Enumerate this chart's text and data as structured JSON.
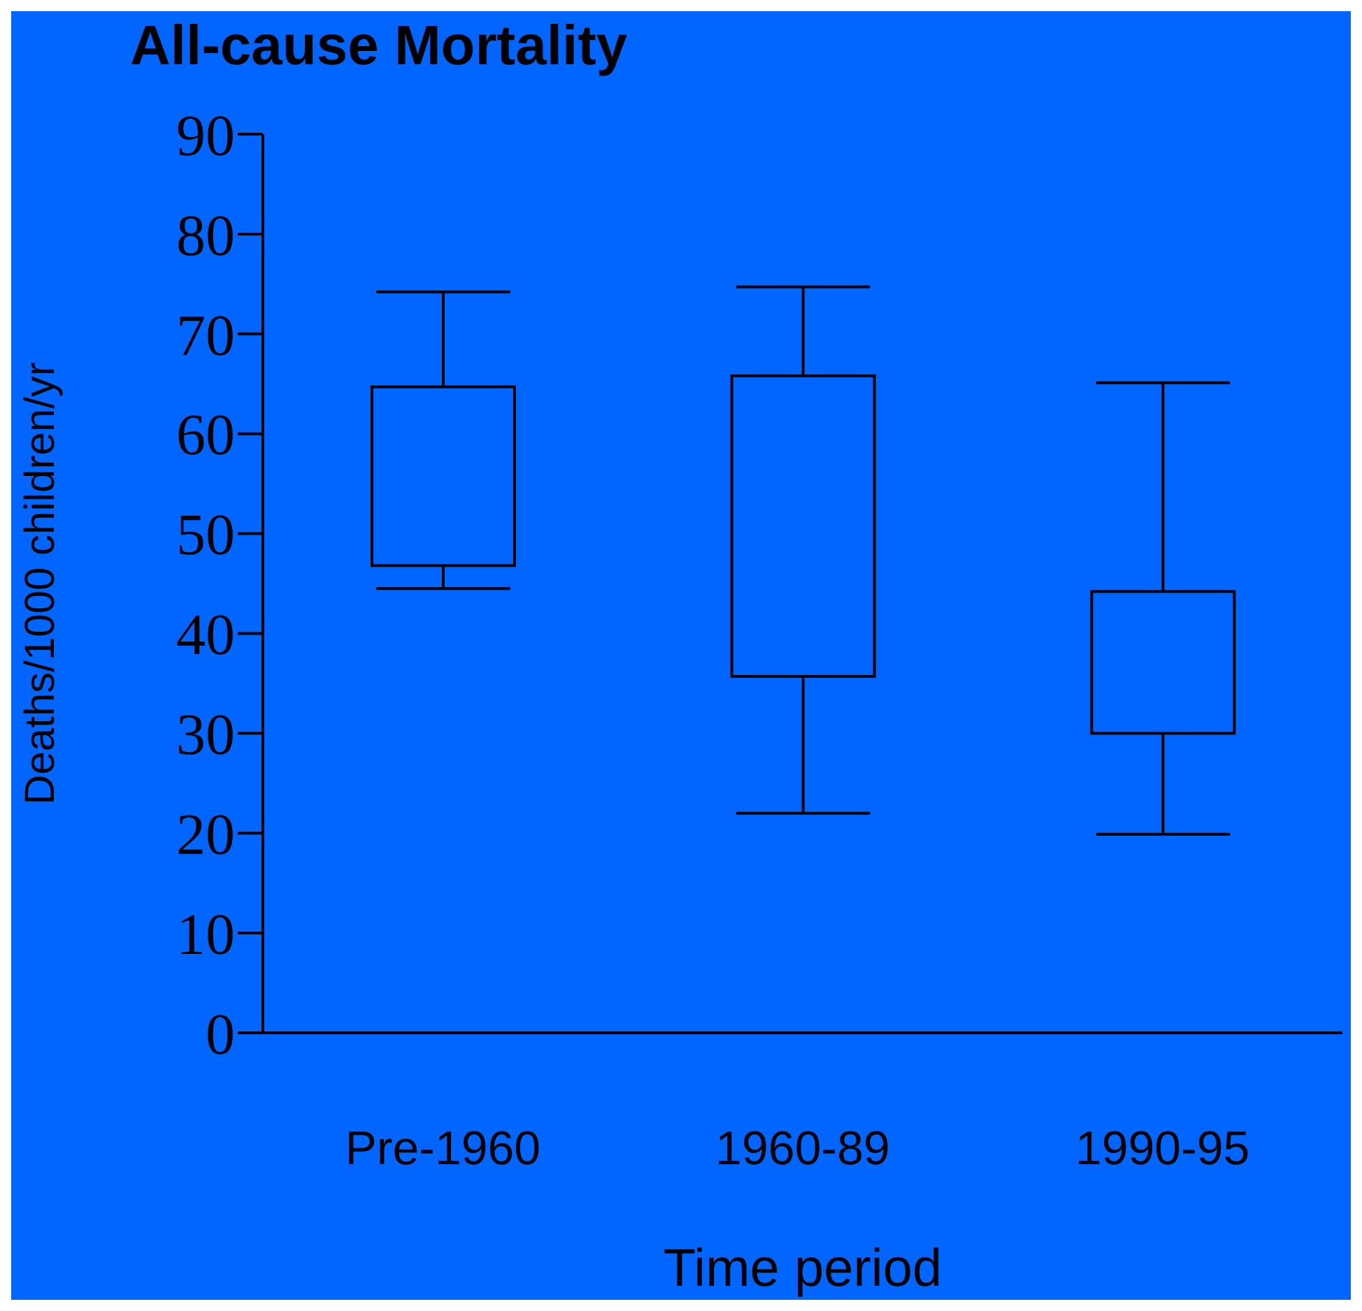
{
  "chart_data": {
    "type": "box",
    "title": "All-cause Mortality",
    "xlabel": "Time period",
    "ylabel": "Deaths/1000 children/yr",
    "categories": [
      "Pre-1960",
      "1960-89",
      "1990-95"
    ],
    "boxes": [
      {
        "low": 44.5,
        "q1": 46.8,
        "q3": 64.7,
        "high": 74.2
      },
      {
        "low": 22,
        "q1": 35.7,
        "q3": 65.8,
        "high": 74.7
      },
      {
        "low": 19.9,
        "q1": 30,
        "q3": 44.2,
        "high": 65.1
      }
    ],
    "color": "#000000",
    "ylim": [
      0,
      90
    ],
    "yticks": [
      0,
      10,
      20,
      30,
      40,
      50,
      60,
      70,
      80,
      90
    ],
    "grid": false,
    "legend": false
  }
}
